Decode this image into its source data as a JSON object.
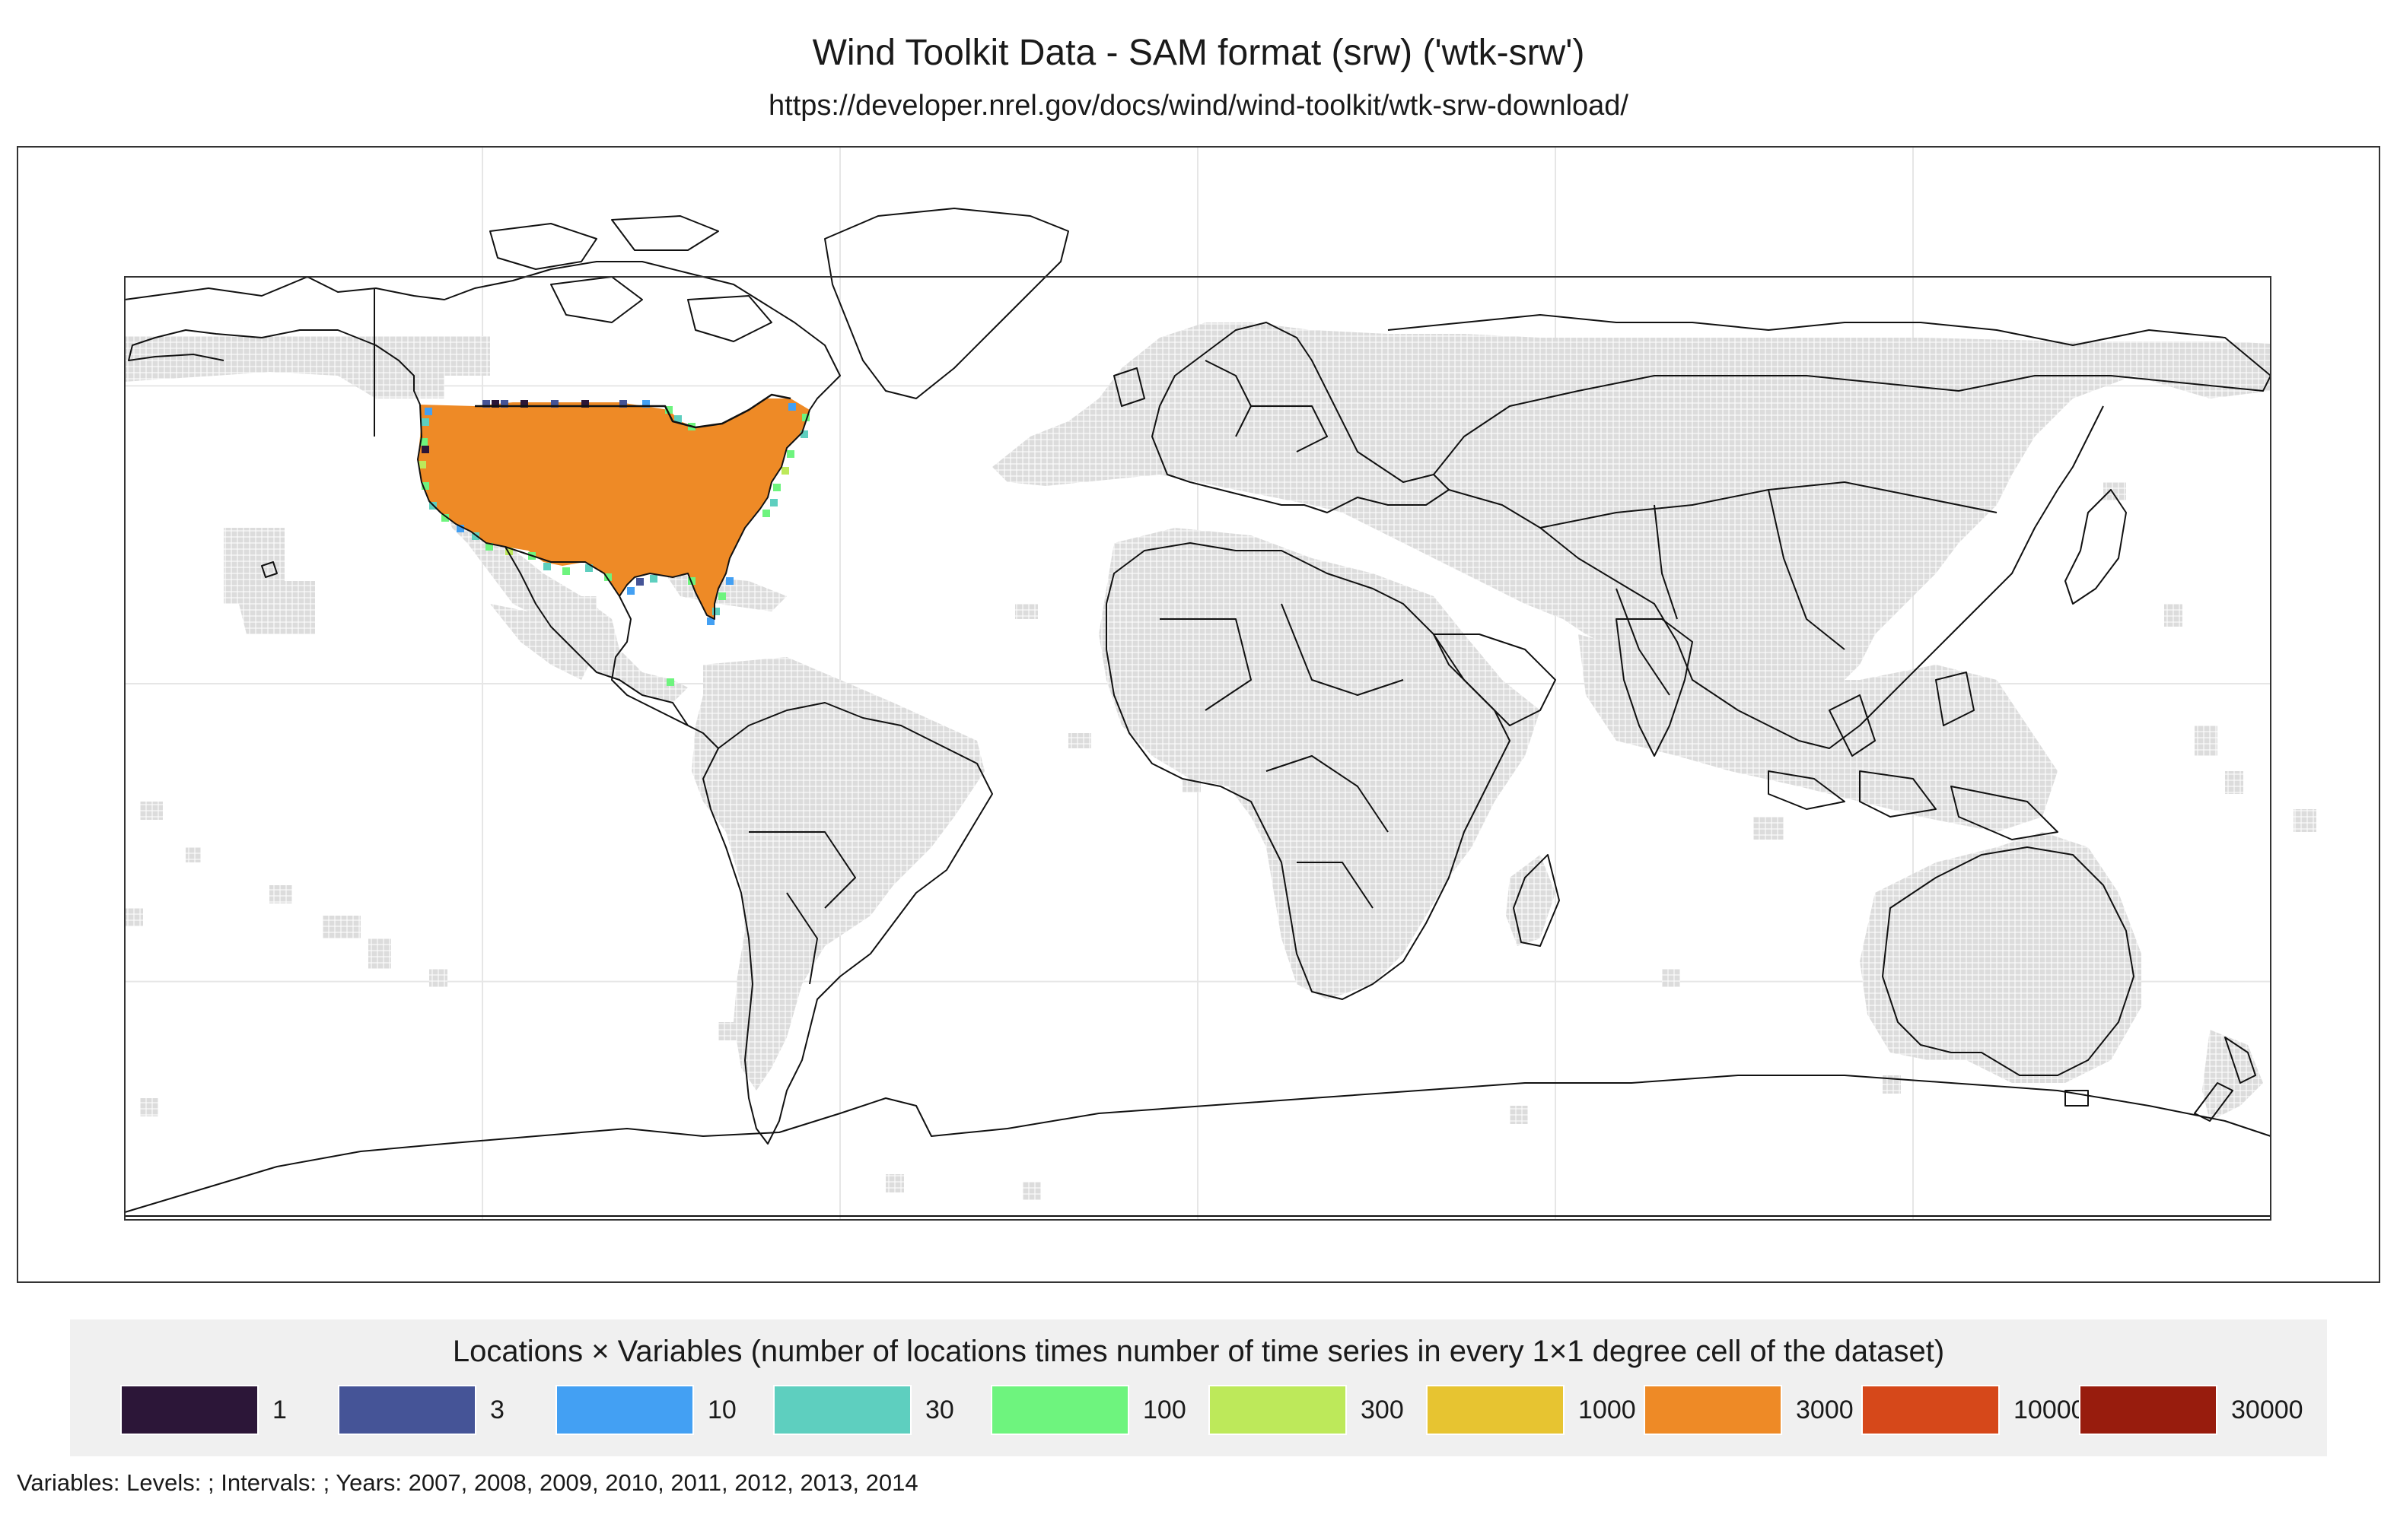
{
  "title": "Wind Toolkit Data - SAM format (srw) ('wtk-srw')",
  "subtitle": "https://developer.nrel.gov/docs/wind/wind-toolkit/wtk-srw-download/",
  "legend": {
    "title": "Locations × Variables (number of locations times number of time series in every 1×1 degree cell of the dataset)",
    "items": [
      {
        "label": "1",
        "color": "#2c1638"
      },
      {
        "label": "3",
        "color": "#455497"
      },
      {
        "label": "10",
        "color": "#43a0f3"
      },
      {
        "label": "30",
        "color": "#5ecfbf"
      },
      {
        "label": "100",
        "color": "#6ef47e"
      },
      {
        "label": "300",
        "color": "#bde95a"
      },
      {
        "label": "1000",
        "color": "#e7c431"
      },
      {
        "label": "3000",
        "color": "#ee8a26"
      },
      {
        "label": "10000",
        "color": "#d6481a"
      },
      {
        "label": "30000",
        "color": "#981c0d"
      }
    ]
  },
  "footnote": "Variables: Levels: ; Intervals: ; Years: 2007, 2008, 2009, 2010, 2011, 2012, 2013, 2014",
  "map": {
    "projection": "equirectangular",
    "lon_range": [
      -180,
      180
    ],
    "lat_range": [
      -90,
      90
    ],
    "graticule": {
      "longitudes": [
        -120,
        -60,
        0,
        60,
        120
      ],
      "latitudes": [
        -50,
        0,
        50
      ]
    },
    "colors": {
      "land_outline": "#111111",
      "no_data_cell": "#dcdcdc",
      "grid": "#e6e6e6",
      "frame": "#333333"
    },
    "coverage": {
      "dominant_bin": "3000",
      "region": "contiguous United States",
      "edge_bins": [
        "1",
        "3",
        "10",
        "30",
        "100",
        "300"
      ]
    }
  }
}
